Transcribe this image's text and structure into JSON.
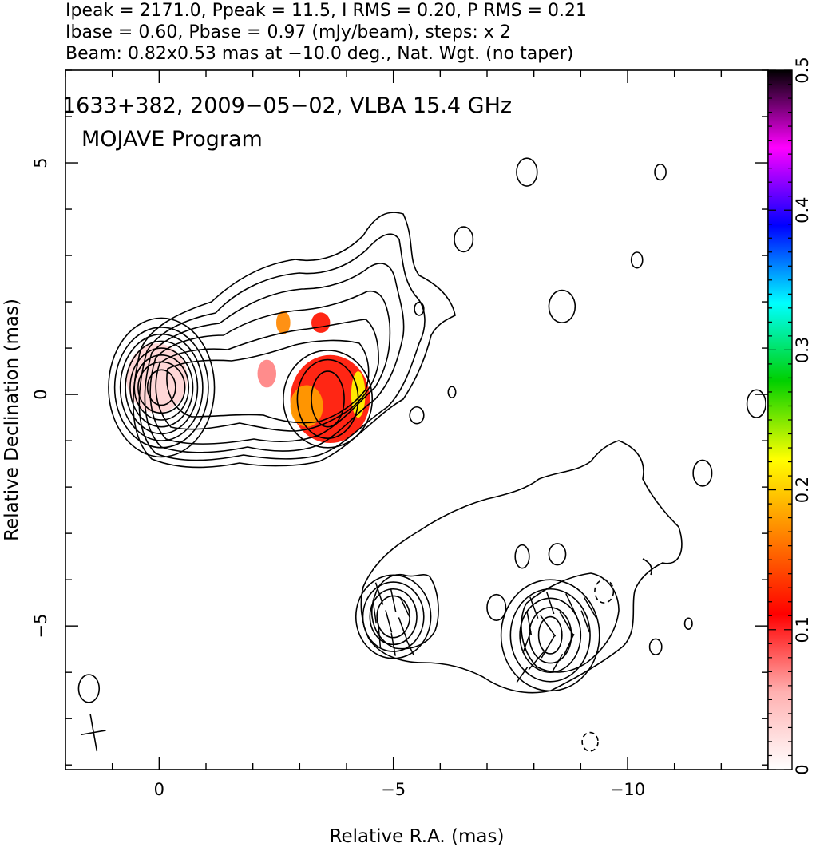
{
  "header": {
    "line1": "Ipeak = 2171.0, Ppeak = 11.5, I RMS = 0.20, P RMS = 0.21",
    "line2": "Ibase = 0.60, Pbase = 0.97 (mJy/beam), steps: x 2",
    "line3": "Beam: 0.82x0.53 mas at −10.0 deg., Nat. Wgt. (no taper)"
  },
  "annotation": {
    "source_line": "1633+382, 2009−05−02, VLBA 15.4 GHz",
    "program_line": "MOJAVE Program"
  },
  "chart_data": {
    "type": "heatmap",
    "xlabel": "Relative R.A. (mas)",
    "ylabel": "Relative Declination (mas)",
    "xlim": [
      2.0,
      -13.0
    ],
    "ylim": [
      -8.1,
      7.0
    ],
    "x_ticks": [
      0,
      -5,
      -10
    ],
    "x_tick_labels": [
      "0",
      "−5",
      "−10"
    ],
    "y_ticks": [
      5,
      0,
      -5
    ],
    "y_tick_labels": [
      "5",
      "0",
      "−5"
    ],
    "colorbar": {
      "range": [
        0,
        0.5
      ],
      "ticks": [
        0,
        0.1,
        0.2,
        0.3,
        0.4,
        0.5
      ],
      "tick_labels": [
        "0",
        "0.1",
        "0.2",
        "0.3",
        "0.4",
        "0.5"
      ],
      "colors": [
        "#ffffff",
        "#ffb0b0",
        "#ff0000",
        "#ff8000",
        "#ffff00",
        "#00d000",
        "#00ffff",
        "#0000ff",
        "#ff00ff",
        "#000000"
      ]
    },
    "beam": {
      "major_mas": 0.82,
      "minor_mas": 0.53,
      "pa_deg": -10.0,
      "center": [
        1.4,
        -7.3
      ]
    },
    "core": {
      "x": -0.05,
      "y": 0.15,
      "peak_mjy_per_beam": 2171.0
    },
    "total_intensity_contours": [
      {
        "group": "core",
        "cx": -0.05,
        "cy": 0.15,
        "rx": [
          0.5,
          0.58,
          0.67,
          0.77,
          0.88,
          1.0,
          1.13
        ],
        "ry": [
          0.55,
          0.7,
          0.85,
          1.0,
          1.15,
          1.3,
          1.5
        ]
      },
      {
        "group": "jet-knot",
        "cx": -3.6,
        "cy": -0.1,
        "rx": [
          0.35,
          0.65,
          0.95
        ],
        "ry": [
          0.6,
          0.85,
          1.05
        ]
      },
      {
        "group": "lobe-east",
        "cx": -5.0,
        "cy": -4.8,
        "rx": [
          0.35,
          0.5,
          0.65,
          0.8
        ],
        "ry": [
          0.45,
          0.6,
          0.75,
          0.9
        ]
      },
      {
        "group": "lobe-west",
        "cx": -8.35,
        "cy": -5.2,
        "rx": [
          0.25,
          0.45,
          0.65,
          0.85,
          1.05
        ],
        "ry": [
          0.4,
          0.6,
          0.8,
          1.0,
          1.2
        ]
      }
    ],
    "fractional_polarization_patches": [
      {
        "x": -3.65,
        "y": -0.1,
        "rx": 0.85,
        "ry": 0.95,
        "value": 0.12
      },
      {
        "x": -3.15,
        "y": -0.25,
        "rx": 0.35,
        "ry": 0.45,
        "value": 0.18
      },
      {
        "x": -4.25,
        "y": 0.0,
        "rx": 0.15,
        "ry": 0.5,
        "value": 0.22
      },
      {
        "x": -2.3,
        "y": 0.45,
        "rx": 0.2,
        "ry": 0.3,
        "value": 0.07
      },
      {
        "x": -2.65,
        "y": 1.55,
        "rx": 0.15,
        "ry": 0.25,
        "value": 0.17
      },
      {
        "x": -3.45,
        "y": 1.55,
        "rx": 0.2,
        "ry": 0.22,
        "value": 0.12
      },
      {
        "x": 0.05,
        "y": 0.35,
        "rx": 0.65,
        "ry": 0.75,
        "value": 0.03
      }
    ],
    "noise_contours": [
      {
        "x": -7.85,
        "y": 4.8,
        "rx": 0.22,
        "ry": 0.3
      },
      {
        "x": -10.7,
        "y": 4.8,
        "rx": 0.12,
        "ry": 0.17
      },
      {
        "x": -6.5,
        "y": 3.35,
        "rx": 0.2,
        "ry": 0.27
      },
      {
        "x": -10.2,
        "y": 2.9,
        "rx": 0.12,
        "ry": 0.17
      },
      {
        "x": -8.6,
        "y": 1.9,
        "rx": 0.28,
        "ry": 0.35
      },
      {
        "x": -5.55,
        "y": 1.85,
        "rx": 0.1,
        "ry": 0.14
      },
      {
        "x": -6.25,
        "y": 0.05,
        "rx": 0.08,
        "ry": 0.12
      },
      {
        "x": -5.5,
        "y": -0.45,
        "rx": 0.15,
        "ry": 0.18
      },
      {
        "x": -12.75,
        "y": -0.2,
        "rx": 0.2,
        "ry": 0.3
      },
      {
        "x": -11.6,
        "y": -1.7,
        "rx": 0.2,
        "ry": 0.28
      },
      {
        "x": -7.75,
        "y": -3.5,
        "rx": 0.15,
        "ry": 0.25
      },
      {
        "x": -8.5,
        "y": -3.45,
        "rx": 0.18,
        "ry": 0.23
      },
      {
        "x": -7.2,
        "y": -4.6,
        "rx": 0.2,
        "ry": 0.28
      },
      {
        "x": -9.5,
        "y": -4.25,
        "rx": 0.2,
        "ry": 0.25,
        "negative": true
      },
      {
        "x": -10.6,
        "y": -5.45,
        "rx": 0.13,
        "ry": 0.17
      },
      {
        "x": -11.3,
        "y": -4.95,
        "rx": 0.08,
        "ry": 0.12
      },
      {
        "x": 1.5,
        "y": -6.35,
        "rx": 0.22,
        "ry": 0.3
      },
      {
        "x": -9.2,
        "y": -7.5,
        "rx": 0.17,
        "ry": 0.2,
        "negative": true
      }
    ],
    "polarization_vectors": [
      {
        "x": -4.7,
        "y": -4.3,
        "length": 0.5,
        "angle_deg": 18
      },
      {
        "x": -5.0,
        "y": -4.45,
        "length": 0.5,
        "angle_deg": 12
      },
      {
        "x": -5.25,
        "y": -4.6,
        "length": 0.5,
        "angle_deg": 25
      },
      {
        "x": -4.6,
        "y": -4.7,
        "length": 0.5,
        "angle_deg": 8
      },
      {
        "x": -4.9,
        "y": -4.9,
        "length": 0.5,
        "angle_deg": 15
      },
      {
        "x": -5.2,
        "y": -5.05,
        "length": 0.5,
        "angle_deg": 20
      },
      {
        "x": -4.7,
        "y": -5.2,
        "length": 0.5,
        "angle_deg": 5
      },
      {
        "x": -5.0,
        "y": -5.4,
        "length": 0.5,
        "angle_deg": 10
      },
      {
        "x": -5.35,
        "y": -5.45,
        "length": 0.4,
        "angle_deg": 25
      },
      {
        "x": -8.0,
        "y": -4.6,
        "length": 0.5,
        "angle_deg": 20
      },
      {
        "x": -8.35,
        "y": -4.5,
        "length": 0.5,
        "angle_deg": 18
      },
      {
        "x": -8.8,
        "y": -4.55,
        "length": 0.55,
        "angle_deg": 25
      },
      {
        "x": -9.2,
        "y": -4.6,
        "length": 0.5,
        "angle_deg": 30
      },
      {
        "x": -7.9,
        "y": -4.95,
        "length": 0.5,
        "angle_deg": 10
      },
      {
        "x": -8.3,
        "y": -5.0,
        "length": 0.55,
        "angle_deg": 35
      },
      {
        "x": -8.7,
        "y": -4.95,
        "length": 0.6,
        "angle_deg": 30
      },
      {
        "x": -9.1,
        "y": -4.9,
        "length": 0.5,
        "angle_deg": 20
      },
      {
        "x": -7.85,
        "y": -5.35,
        "length": 0.5,
        "angle_deg": -20
      },
      {
        "x": -8.3,
        "y": -5.45,
        "length": 0.55,
        "angle_deg": -30
      },
      {
        "x": -8.75,
        "y": -5.4,
        "length": 0.5,
        "angle_deg": -25
      },
      {
        "x": -8.05,
        "y": -5.75,
        "length": 0.5,
        "angle_deg": -40
      },
      {
        "x": -8.5,
        "y": -5.8,
        "length": 0.45,
        "angle_deg": -30
      },
      {
        "x": -7.75,
        "y": -6.05,
        "length": 0.4,
        "angle_deg": -35
      }
    ]
  }
}
